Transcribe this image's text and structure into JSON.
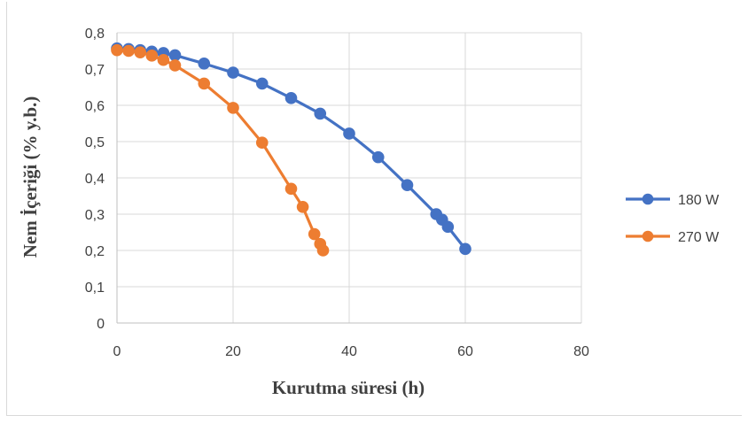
{
  "chart_data": {
    "type": "line",
    "title": "",
    "xlabel": "Kurutma süresi (h)",
    "ylabel": "Nem İçeriği (% y.b.)",
    "xlim": [
      0,
      80
    ],
    "ylim": [
      0,
      0.8
    ],
    "xticks": [
      0,
      20,
      40,
      60,
      80
    ],
    "yticks": [
      0,
      0.1,
      0.2,
      0.3,
      0.4,
      0.5,
      0.6,
      0.7,
      0.8
    ],
    "xtick_labels": [
      "0",
      "20",
      "40",
      "60",
      "80"
    ],
    "ytick_labels": [
      "0",
      "0,1",
      "0,2",
      "0,3",
      "0,4",
      "0,5",
      "0,6",
      "0,7",
      "0,8"
    ],
    "grid": true,
    "legend_position": "right",
    "series": [
      {
        "name": "180 W",
        "color": "#4472c4",
        "x": [
          0,
          2,
          4,
          6,
          8,
          10,
          15,
          20,
          25,
          30,
          35,
          40,
          45,
          50,
          55,
          56,
          57,
          60
        ],
        "y": [
          0.757,
          0.755,
          0.752,
          0.748,
          0.744,
          0.738,
          0.715,
          0.69,
          0.66,
          0.62,
          0.577,
          0.522,
          0.457,
          0.38,
          0.3,
          0.285,
          0.265,
          0.204
        ]
      },
      {
        "name": "270 W",
        "color": "#ed7d31",
        "x": [
          0,
          2,
          4,
          6,
          8,
          10,
          15,
          20,
          25,
          30,
          32,
          34,
          35,
          35.5
        ],
        "y": [
          0.752,
          0.75,
          0.746,
          0.737,
          0.725,
          0.71,
          0.66,
          0.593,
          0.497,
          0.37,
          0.32,
          0.245,
          0.218,
          0.2
        ]
      }
    ]
  }
}
